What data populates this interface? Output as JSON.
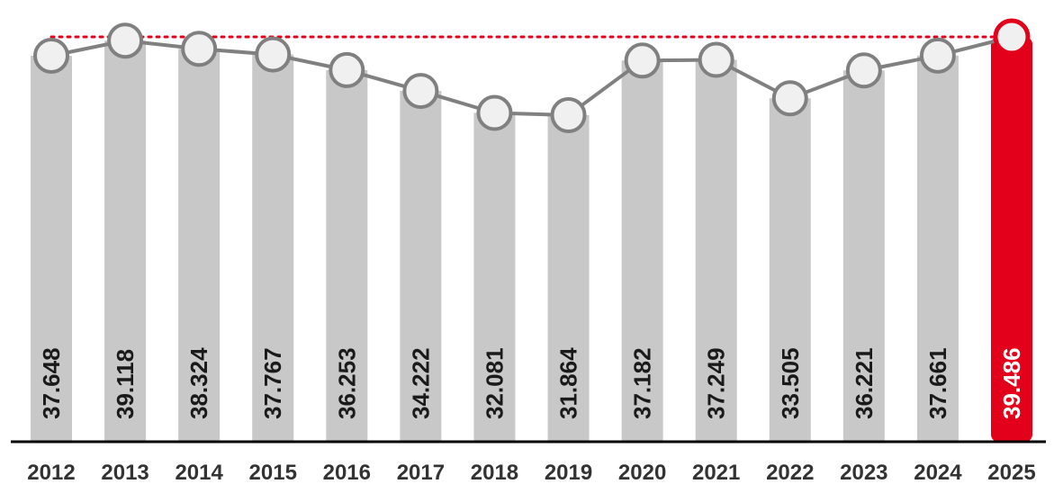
{
  "chart_data": {
    "type": "bar",
    "categories": [
      "2012",
      "2013",
      "2014",
      "2015",
      "2016",
      "2017",
      "2018",
      "2019",
      "2020",
      "2021",
      "2022",
      "2023",
      "2024",
      "2025"
    ],
    "values": [
      37648,
      39118,
      38324,
      37767,
      36253,
      34222,
      32081,
      31864,
      37182,
      37249,
      33505,
      36221,
      37661,
      39486
    ],
    "value_labels": [
      "37.648",
      "39.118",
      "38.324",
      "37.767",
      "36.253",
      "34.222",
      "32.081",
      "31.864",
      "37.182",
      "37.249",
      "33.505",
      "36.221",
      "37.661",
      "39.486"
    ],
    "line_overlay": {
      "values": [
        37648,
        39118,
        38324,
        37767,
        36253,
        34222,
        32081,
        31864,
        37182,
        37249,
        33505,
        36221,
        37661,
        39486
      ]
    },
    "reference_line": {
      "value": 39486,
      "style": "dotted"
    },
    "highlight_index": 13,
    "title": "",
    "xlabel": "",
    "ylabel": "",
    "grid": false,
    "legend": "none"
  },
  "colors": {
    "bar": "#c8c8c8",
    "bar_highlight": "#e2001a",
    "line": "#808080",
    "marker_fill": "#f0f0f0",
    "marker_stroke": "#808080",
    "highlight_marker_stroke": "#e2001a",
    "reference_line": "#e2001a",
    "label_text": "#1a1a1a",
    "highlight_label_text": "#ffffff",
    "axis": "#000000"
  }
}
